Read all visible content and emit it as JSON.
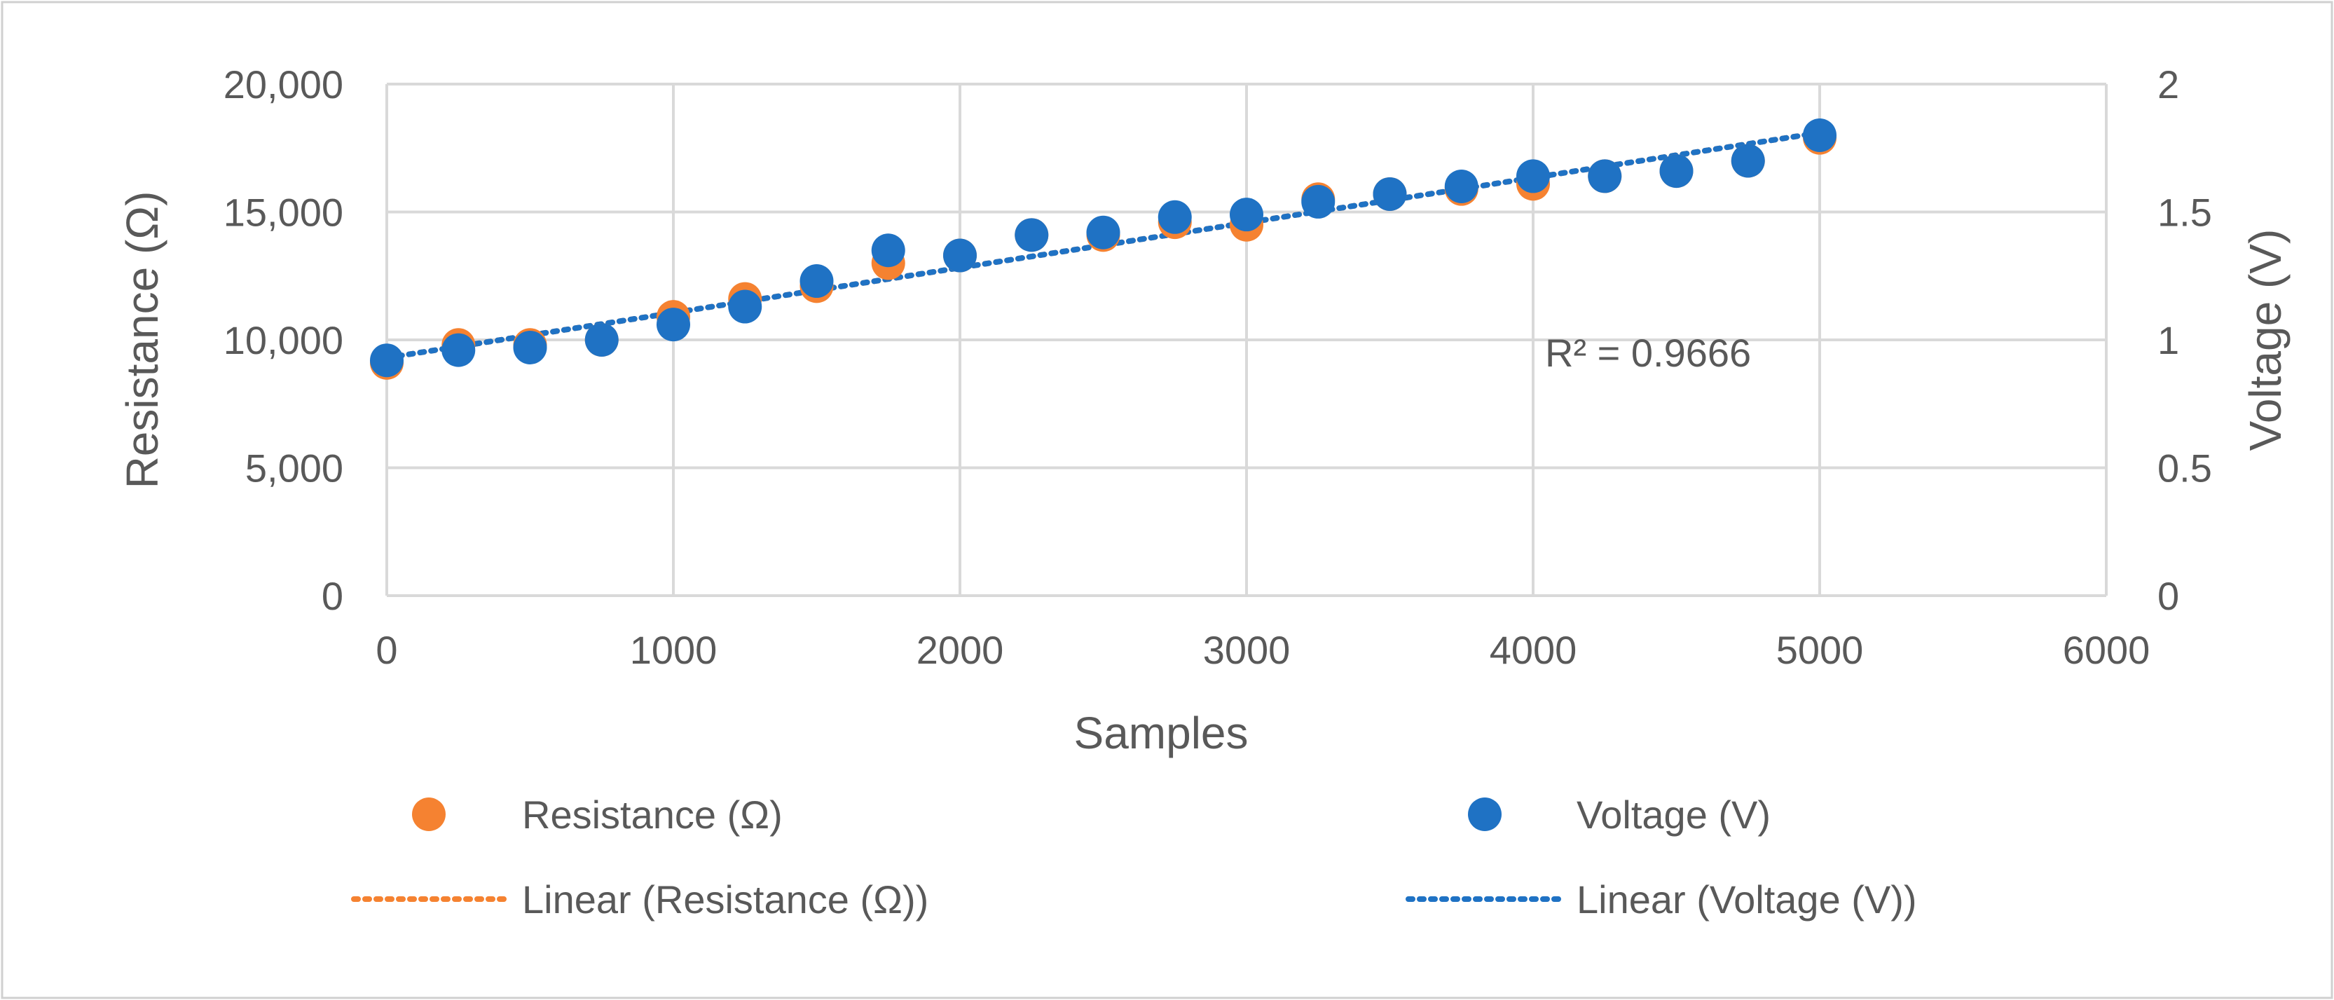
{
  "chart_data": {
    "type": "scatter",
    "xlabel": "Samples",
    "ylabel_left": "Resistance (Ω)",
    "ylabel_right": "Voltage (V)",
    "xlim": [
      0,
      6000
    ],
    "ylim_left": [
      0,
      20000
    ],
    "ylim_right": [
      0,
      2
    ],
    "x_ticks": [
      0,
      1000,
      2000,
      3000,
      4000,
      5000,
      6000
    ],
    "x_tick_labels": [
      "0",
      "1000",
      "2000",
      "3000",
      "4000",
      "5000",
      "6000"
    ],
    "y_left_ticks": [
      0,
      5000,
      10000,
      15000,
      20000
    ],
    "y_left_tick_labels": [
      "0",
      "5,000",
      "10,000",
      "15,000",
      "20,000"
    ],
    "y_right_ticks": [
      0,
      0.5,
      1,
      1.5,
      2
    ],
    "y_right_tick_labels": [
      "0",
      "0.5",
      "1",
      "1.5",
      "2"
    ],
    "grid": true,
    "legend_position": "bottom",
    "annotation": "R² = 0.9666",
    "x": [
      0,
      250,
      500,
      750,
      1000,
      1250,
      1500,
      1750,
      2000,
      2250,
      2500,
      2750,
      3000,
      3250,
      3500,
      3750,
      4000,
      4250,
      4500,
      4750,
      5000
    ],
    "series": [
      {
        "name": "Resistance (Ω)",
        "axis": "left",
        "color": "#F58231",
        "values": [
          9100,
          9800,
          9800,
          10000,
          10900,
          11600,
          12100,
          13000,
          13300,
          14100,
          14100,
          14600,
          14500,
          15500,
          15700,
          15900,
          16100,
          16400,
          16600,
          17000,
          17900
        ]
      },
      {
        "name": "Voltage (V)",
        "axis": "right",
        "color": "#1F72C4",
        "values": [
          0.92,
          0.96,
          0.97,
          1.0,
          1.06,
          1.13,
          1.23,
          1.35,
          1.33,
          1.41,
          1.42,
          1.48,
          1.49,
          1.54,
          1.57,
          1.6,
          1.64,
          1.64,
          1.66,
          1.7,
          1.8
        ]
      }
    ],
    "trendlines": [
      {
        "name": "Linear (Resistance (Ω))",
        "series": "Resistance (Ω)",
        "color": "#F58231",
        "start": [
          0,
          9300
        ],
        "end": [
          5000,
          18100
        ]
      },
      {
        "name": "Linear (Voltage (V))",
        "series": "Voltage (V)",
        "color": "#1F72C4",
        "start": [
          0,
          0.93
        ],
        "end": [
          5000,
          1.81
        ]
      }
    ]
  }
}
